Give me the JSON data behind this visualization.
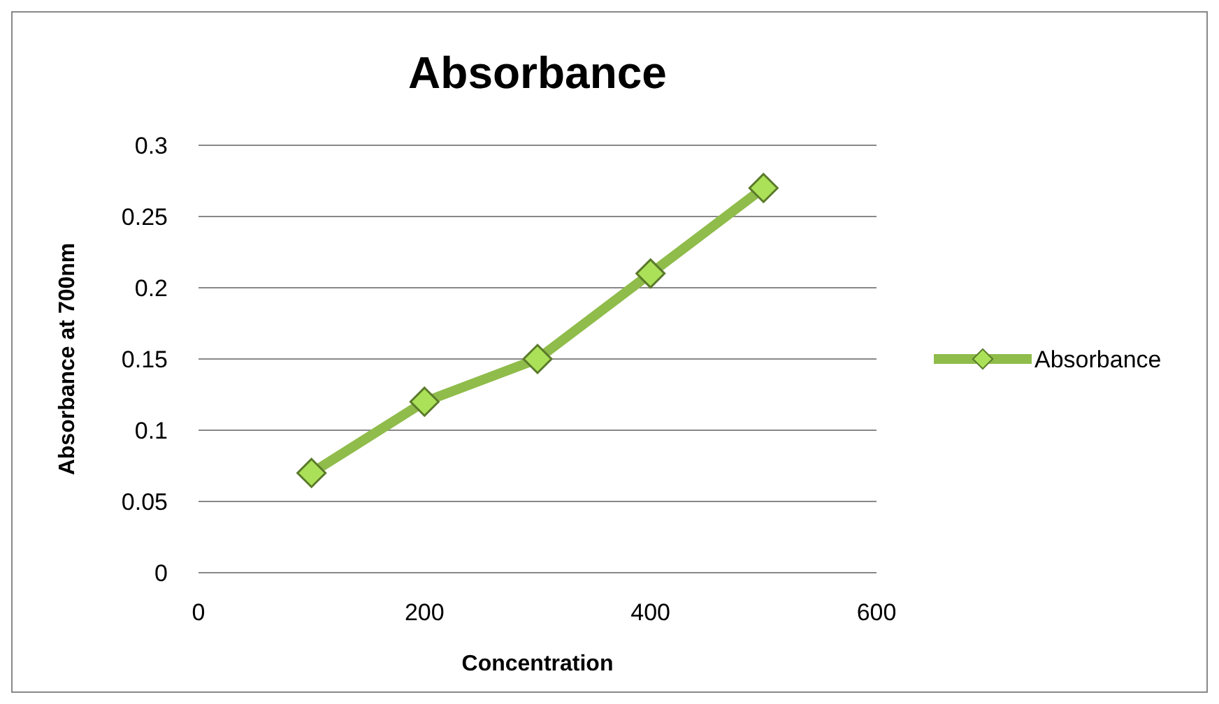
{
  "chart_data": {
    "type": "line",
    "title": "Absorbance",
    "xlabel": "Concentration",
    "ylabel": "Absorbance at 700nm",
    "x": [
      100,
      200,
      300,
      400,
      500
    ],
    "series": [
      {
        "name": "Absorbance",
        "color": "#8fbc4a",
        "values": [
          0.07,
          0.12,
          0.15,
          0.21,
          0.27
        ]
      }
    ],
    "xlim": [
      0,
      600
    ],
    "xticks": [
      0,
      200,
      400,
      600
    ],
    "ylim": [
      0,
      0.3
    ],
    "yticks": [
      0,
      0.05,
      0.1,
      0.15,
      0.2,
      0.25,
      0.3
    ],
    "grid": "y",
    "legend": "right",
    "marker": "diamond",
    "line_style": "solid"
  }
}
